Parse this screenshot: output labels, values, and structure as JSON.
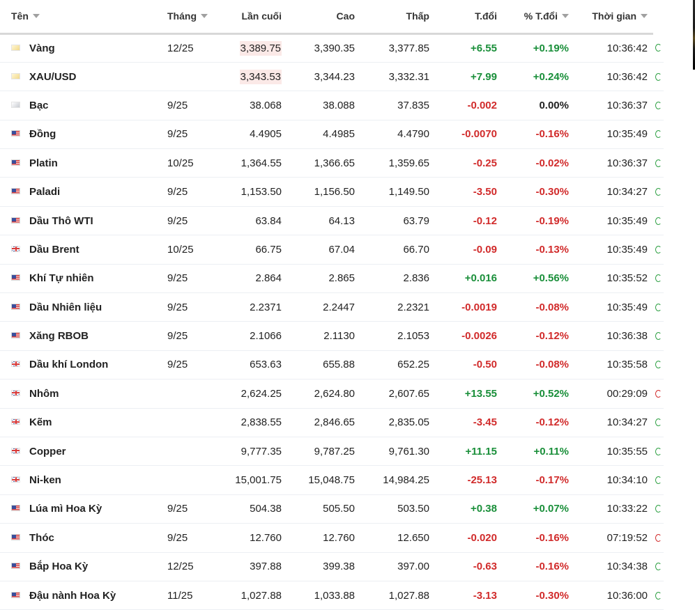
{
  "headers": {
    "name": "Tên",
    "month": "Tháng",
    "last": "Lần cuối",
    "high": "Cao",
    "low": "Thấp",
    "change": "T.đổi",
    "change_pct": "% T.đổi",
    "time": "Thời gian"
  },
  "colors": {
    "positive": "#1a8f3a",
    "negative": "#d12b2b",
    "highlight": "#fbe9e7"
  },
  "rows": [
    {
      "name": "Vàng",
      "flag": "gold-icon",
      "month": "12/25",
      "last": "3,389.75",
      "high": "3,390.35",
      "low": "3,377.85",
      "change": "+6.55",
      "pct": "+0.19%",
      "time": "10:36:42",
      "dir": "pos",
      "hl": true,
      "status": "open"
    },
    {
      "name": "XAU/USD",
      "flag": "gold-icon",
      "month": "",
      "last": "3,343.53",
      "high": "3,344.23",
      "low": "3,332.31",
      "change": "+7.99",
      "pct": "+0.24%",
      "time": "10:36:42",
      "dir": "pos",
      "hl": true,
      "status": "open"
    },
    {
      "name": "Bạc",
      "flag": "silver-icon",
      "month": "9/25",
      "last": "38.068",
      "high": "38.088",
      "low": "37.835",
      "change": "-0.002",
      "pct": "0.00%",
      "time": "10:36:37",
      "dir": "neg",
      "pctdir": "neu",
      "hl": false,
      "status": "open"
    },
    {
      "name": "Đồng",
      "flag": "us-flag-icon",
      "month": "9/25",
      "last": "4.4905",
      "high": "4.4985",
      "low": "4.4790",
      "change": "-0.0070",
      "pct": "-0.16%",
      "time": "10:35:49",
      "dir": "neg",
      "hl": false,
      "status": "open"
    },
    {
      "name": "Platin",
      "flag": "us-flag-icon",
      "month": "10/25",
      "last": "1,364.55",
      "high": "1,366.65",
      "low": "1,359.65",
      "change": "-0.25",
      "pct": "-0.02%",
      "time": "10:36:37",
      "dir": "neg",
      "hl": false,
      "status": "open"
    },
    {
      "name": "Paladi",
      "flag": "us-flag-icon",
      "month": "9/25",
      "last": "1,153.50",
      "high": "1,156.50",
      "low": "1,149.50",
      "change": "-3.50",
      "pct": "-0.30%",
      "time": "10:34:27",
      "dir": "neg",
      "hl": false,
      "status": "open"
    },
    {
      "name": "Dầu Thô WTI",
      "flag": "us-flag-icon",
      "month": "9/25",
      "last": "63.84",
      "high": "64.13",
      "low": "63.79",
      "change": "-0.12",
      "pct": "-0.19%",
      "time": "10:35:49",
      "dir": "neg",
      "hl": false,
      "status": "open"
    },
    {
      "name": "Dầu Brent",
      "flag": "uk-flag-icon",
      "month": "10/25",
      "last": "66.75",
      "high": "67.04",
      "low": "66.70",
      "change": "-0.09",
      "pct": "-0.13%",
      "time": "10:35:49",
      "dir": "neg",
      "hl": false,
      "status": "open"
    },
    {
      "name": "Khí Tự nhiên",
      "flag": "us-flag-icon",
      "month": "9/25",
      "last": "2.864",
      "high": "2.865",
      "low": "2.836",
      "change": "+0.016",
      "pct": "+0.56%",
      "time": "10:35:52",
      "dir": "pos",
      "hl": false,
      "status": "open"
    },
    {
      "name": "Dầu Nhiên liệu",
      "flag": "us-flag-icon",
      "month": "9/25",
      "last": "2.2371",
      "high": "2.2447",
      "low": "2.2321",
      "change": "-0.0019",
      "pct": "-0.08%",
      "time": "10:35:49",
      "dir": "neg",
      "hl": false,
      "status": "open"
    },
    {
      "name": "Xăng RBOB",
      "flag": "us-flag-icon",
      "month": "9/25",
      "last": "2.1066",
      "high": "2.1130",
      "low": "2.1053",
      "change": "-0.0026",
      "pct": "-0.12%",
      "time": "10:36:38",
      "dir": "neg",
      "hl": false,
      "status": "open"
    },
    {
      "name": "Dầu khí London",
      "flag": "uk-flag-icon",
      "month": "9/25",
      "last": "653.63",
      "high": "655.88",
      "low": "652.25",
      "change": "-0.50",
      "pct": "-0.08%",
      "time": "10:35:58",
      "dir": "neg",
      "hl": false,
      "status": "open"
    },
    {
      "name": "Nhôm",
      "flag": "uk-flag-icon",
      "month": "",
      "last": "2,624.25",
      "high": "2,624.80",
      "low": "2,607.65",
      "change": "+13.55",
      "pct": "+0.52%",
      "time": "00:29:09",
      "dir": "pos",
      "hl": false,
      "status": "closed"
    },
    {
      "name": "Kẽm",
      "flag": "uk-flag-icon",
      "month": "",
      "last": "2,838.55",
      "high": "2,846.65",
      "low": "2,835.05",
      "change": "-3.45",
      "pct": "-0.12%",
      "time": "10:34:27",
      "dir": "neg",
      "hl": false,
      "status": "open"
    },
    {
      "name": "Copper",
      "flag": "uk-flag-icon",
      "month": "",
      "last": "9,777.35",
      "high": "9,787.25",
      "low": "9,761.30",
      "change": "+11.15",
      "pct": "+0.11%",
      "time": "10:35:55",
      "dir": "pos",
      "hl": false,
      "status": "open"
    },
    {
      "name": "Ni-ken",
      "flag": "uk-flag-icon",
      "month": "",
      "last": "15,001.75",
      "high": "15,048.75",
      "low": "14,984.25",
      "change": "-25.13",
      "pct": "-0.17%",
      "time": "10:34:10",
      "dir": "neg",
      "hl": false,
      "status": "open"
    },
    {
      "name": "Lúa mì Hoa Kỳ",
      "flag": "us-flag-icon",
      "month": "9/25",
      "last": "504.38",
      "high": "505.50",
      "low": "503.50",
      "change": "+0.38",
      "pct": "+0.07%",
      "time": "10:33:22",
      "dir": "pos",
      "hl": false,
      "status": "open"
    },
    {
      "name": "Thóc",
      "flag": "us-flag-icon",
      "month": "9/25",
      "last": "12.760",
      "high": "12.760",
      "low": "12.650",
      "change": "-0.020",
      "pct": "-0.16%",
      "time": "07:19:52",
      "dir": "neg",
      "hl": false,
      "status": "closed"
    },
    {
      "name": "Bắp Hoa Kỳ",
      "flag": "us-flag-icon",
      "month": "12/25",
      "last": "397.88",
      "high": "399.38",
      "low": "397.00",
      "change": "-0.63",
      "pct": "-0.16%",
      "time": "10:34:38",
      "dir": "neg",
      "hl": false,
      "status": "open"
    },
    {
      "name": "Đậu nành Hoa Kỳ",
      "flag": "us-flag-icon",
      "month": "11/25",
      "last": "1,027.88",
      "high": "1,033.88",
      "low": "1,027.88",
      "change": "-3.13",
      "pct": "-0.30%",
      "time": "10:36:00",
      "dir": "neg",
      "hl": false,
      "status": "open"
    }
  ]
}
